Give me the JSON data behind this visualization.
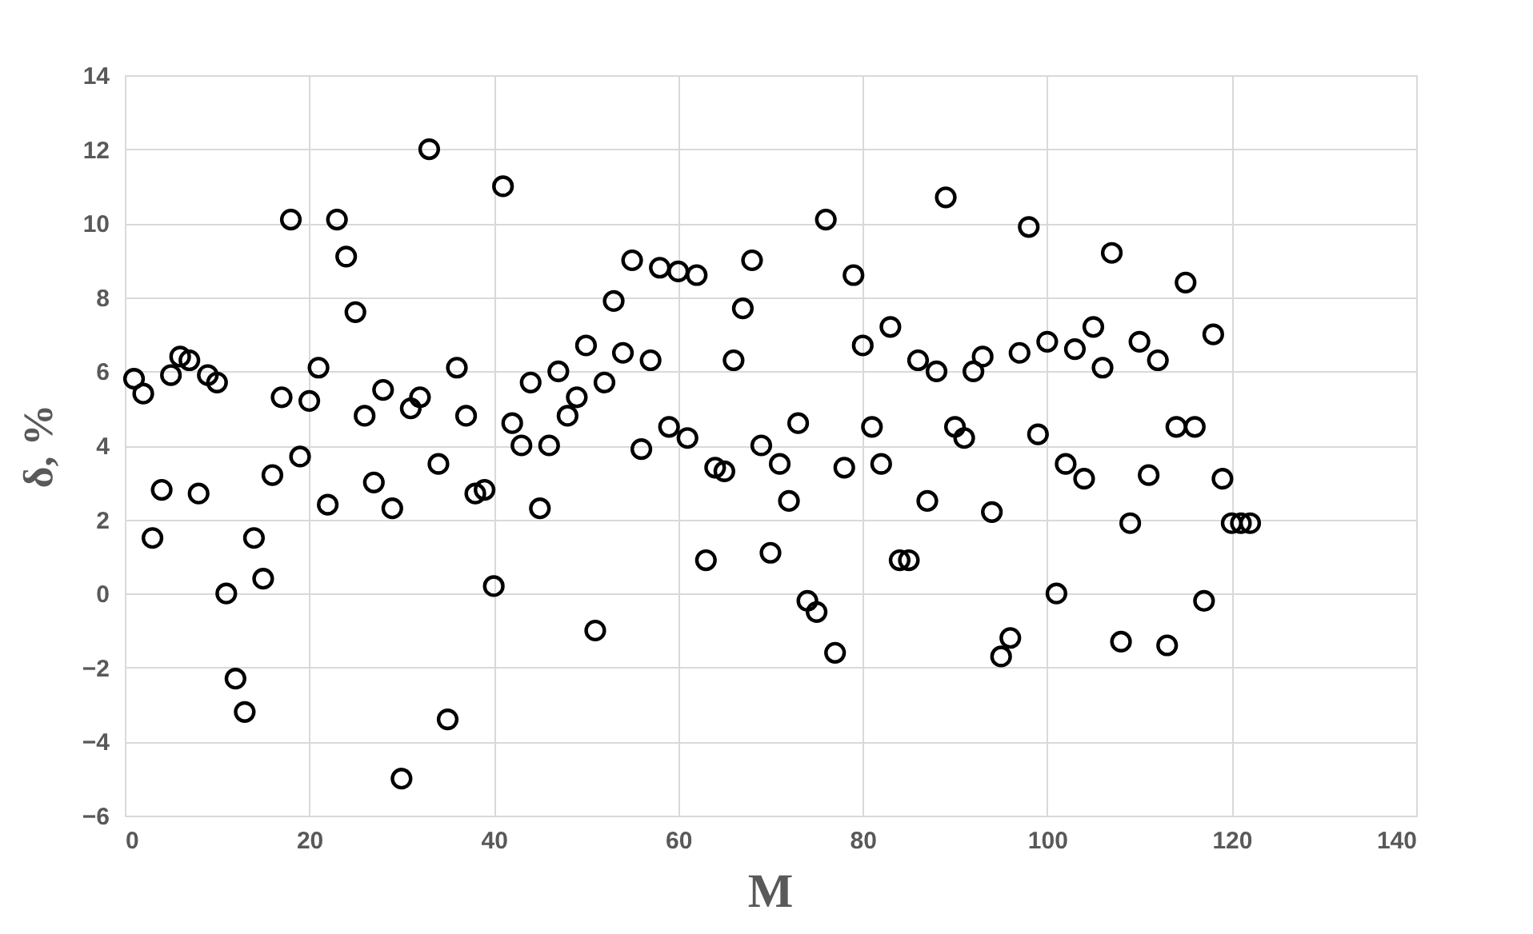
{
  "chart_data": {
    "type": "scatter",
    "xlabel": "M",
    "ylabel": "δ, %",
    "x": [
      1,
      2,
      3,
      4,
      5,
      6,
      7,
      8,
      9,
      10,
      11,
      12,
      13,
      14,
      15,
      16,
      17,
      18,
      19,
      20,
      21,
      22,
      23,
      24,
      25,
      26,
      27,
      28,
      29,
      30,
      31,
      32,
      33,
      34,
      35,
      36,
      37,
      38,
      39,
      40,
      41,
      42,
      43,
      44,
      45,
      46,
      47,
      48,
      49,
      50,
      51,
      52,
      53,
      54,
      55,
      56,
      57,
      58,
      59,
      60,
      61,
      62,
      63,
      64,
      65,
      66,
      67,
      68,
      69,
      70,
      71,
      72,
      73,
      74,
      75,
      76,
      77,
      78,
      79,
      80,
      81,
      82,
      83,
      84,
      85,
      86,
      87,
      88,
      89,
      90,
      91,
      92,
      93,
      94,
      95,
      96,
      97,
      98,
      99,
      100,
      101,
      102,
      103,
      104,
      105,
      106,
      107,
      108,
      109,
      110,
      111,
      112,
      113,
      114,
      115,
      116,
      117,
      118,
      119,
      120,
      121,
      122
    ],
    "series": [
      {
        "color": "#000000",
        "values": [
          5.8,
          5.4,
          1.5,
          2.8,
          5.9,
          6.4,
          6.3,
          2.7,
          5.9,
          5.7,
          0.0,
          -2.3,
          -3.2,
          1.5,
          0.4,
          3.2,
          5.3,
          10.1,
          3.7,
          5.2,
          6.1,
          2.4,
          10.1,
          9.1,
          7.6,
          4.8,
          3.0,
          5.5,
          2.3,
          -5.0,
          5.0,
          5.3,
          12.0,
          3.5,
          -3.4,
          6.1,
          4.8,
          2.7,
          2.8,
          0.2,
          11.0,
          4.6,
          4.0,
          5.7,
          2.3,
          4.0,
          6.0,
          4.8,
          5.3,
          6.7,
          -1.0,
          5.7,
          7.9,
          6.5,
          9.0,
          3.9,
          6.3,
          8.8,
          4.5,
          8.7,
          4.2,
          8.6,
          0.9,
          3.4,
          3.3,
          6.3,
          7.7,
          9.0,
          4.0,
          1.1,
          3.5,
          2.5,
          4.6,
          -0.2,
          -0.5,
          10.1,
          -1.6,
          3.4,
          8.6,
          6.7,
          4.5,
          3.5,
          7.2,
          0.9,
          0.9,
          6.3,
          2.5,
          6.0,
          10.7,
          4.5,
          4.2,
          6.0,
          6.4,
          2.2,
          -1.7,
          -1.2,
          6.5,
          9.9,
          4.3,
          6.8,
          0.0,
          3.5,
          6.6,
          3.1,
          7.2,
          6.1,
          9.2,
          -1.3,
          1.9,
          6.8,
          3.2,
          6.3,
          -1.4,
          4.5,
          8.4,
          4.5,
          -0.2,
          7.0,
          3.1,
          1.9,
          1.9,
          1.9
        ]
      }
    ],
    "xlim": [
      0,
      140
    ],
    "xticks": [
      0,
      20,
      40,
      60,
      80,
      100,
      120,
      140
    ],
    "ylim": [
      -6,
      14
    ],
    "yticks": [
      -6,
      -4,
      -2,
      0,
      2,
      4,
      6,
      8,
      10,
      12,
      14
    ],
    "grid": true,
    "marker": "circle"
  }
}
